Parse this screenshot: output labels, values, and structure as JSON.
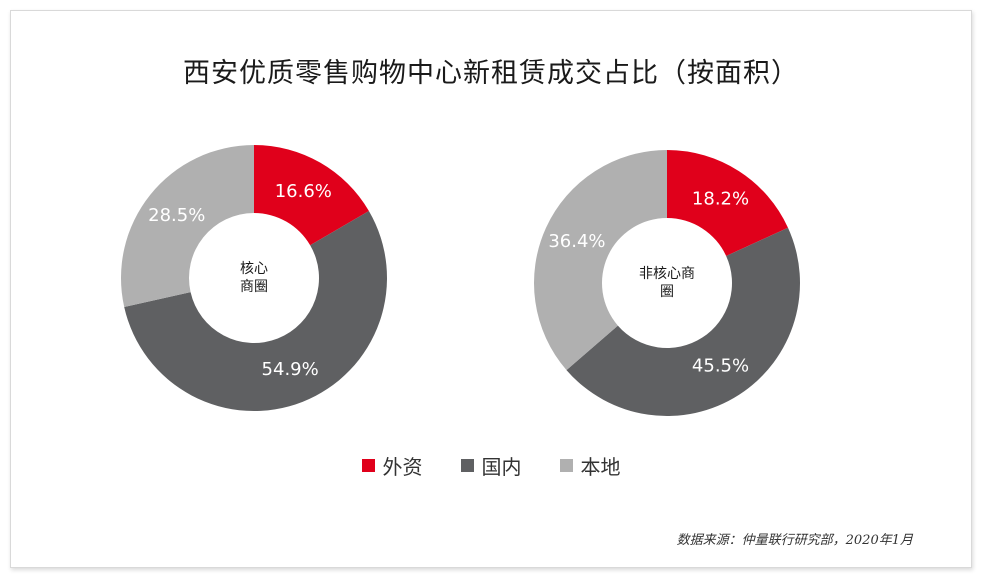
{
  "header": {
    "title": "西安优质零售购物中心新租赁成交占比（按面积）"
  },
  "colors": {
    "foreign": "#e0001b",
    "domestic": "#5f6062",
    "local": "#b0b0b0"
  },
  "chart_data": [
    {
      "type": "pie",
      "center_label_lines": [
        "核心",
        "商圈"
      ],
      "slices": [
        {
          "name": "外资",
          "value": 16.6,
          "label": "16.6%"
        },
        {
          "name": "国内",
          "value": 54.9,
          "label": "54.9%"
        },
        {
          "name": "本地",
          "value": 28.5,
          "label": "28.5%"
        }
      ]
    },
    {
      "type": "pie",
      "center_label_lines": [
        "非核心商",
        "圈"
      ],
      "slices": [
        {
          "name": "外资",
          "value": 18.2,
          "label": "18.2%"
        },
        {
          "name": "国内",
          "value": 45.5,
          "label": "45.5%"
        },
        {
          "name": "本地",
          "value": 36.4,
          "label": "36.4%"
        }
      ]
    }
  ],
  "legend": {
    "placement": "bottom-center",
    "items": [
      {
        "label": "外资",
        "color_key": "foreign"
      },
      {
        "label": "国内",
        "color_key": "domestic"
      },
      {
        "label": "本地",
        "color_key": "local"
      }
    ]
  },
  "source": {
    "text": "数据来源：仲量联行研究部，2020年1月"
  }
}
